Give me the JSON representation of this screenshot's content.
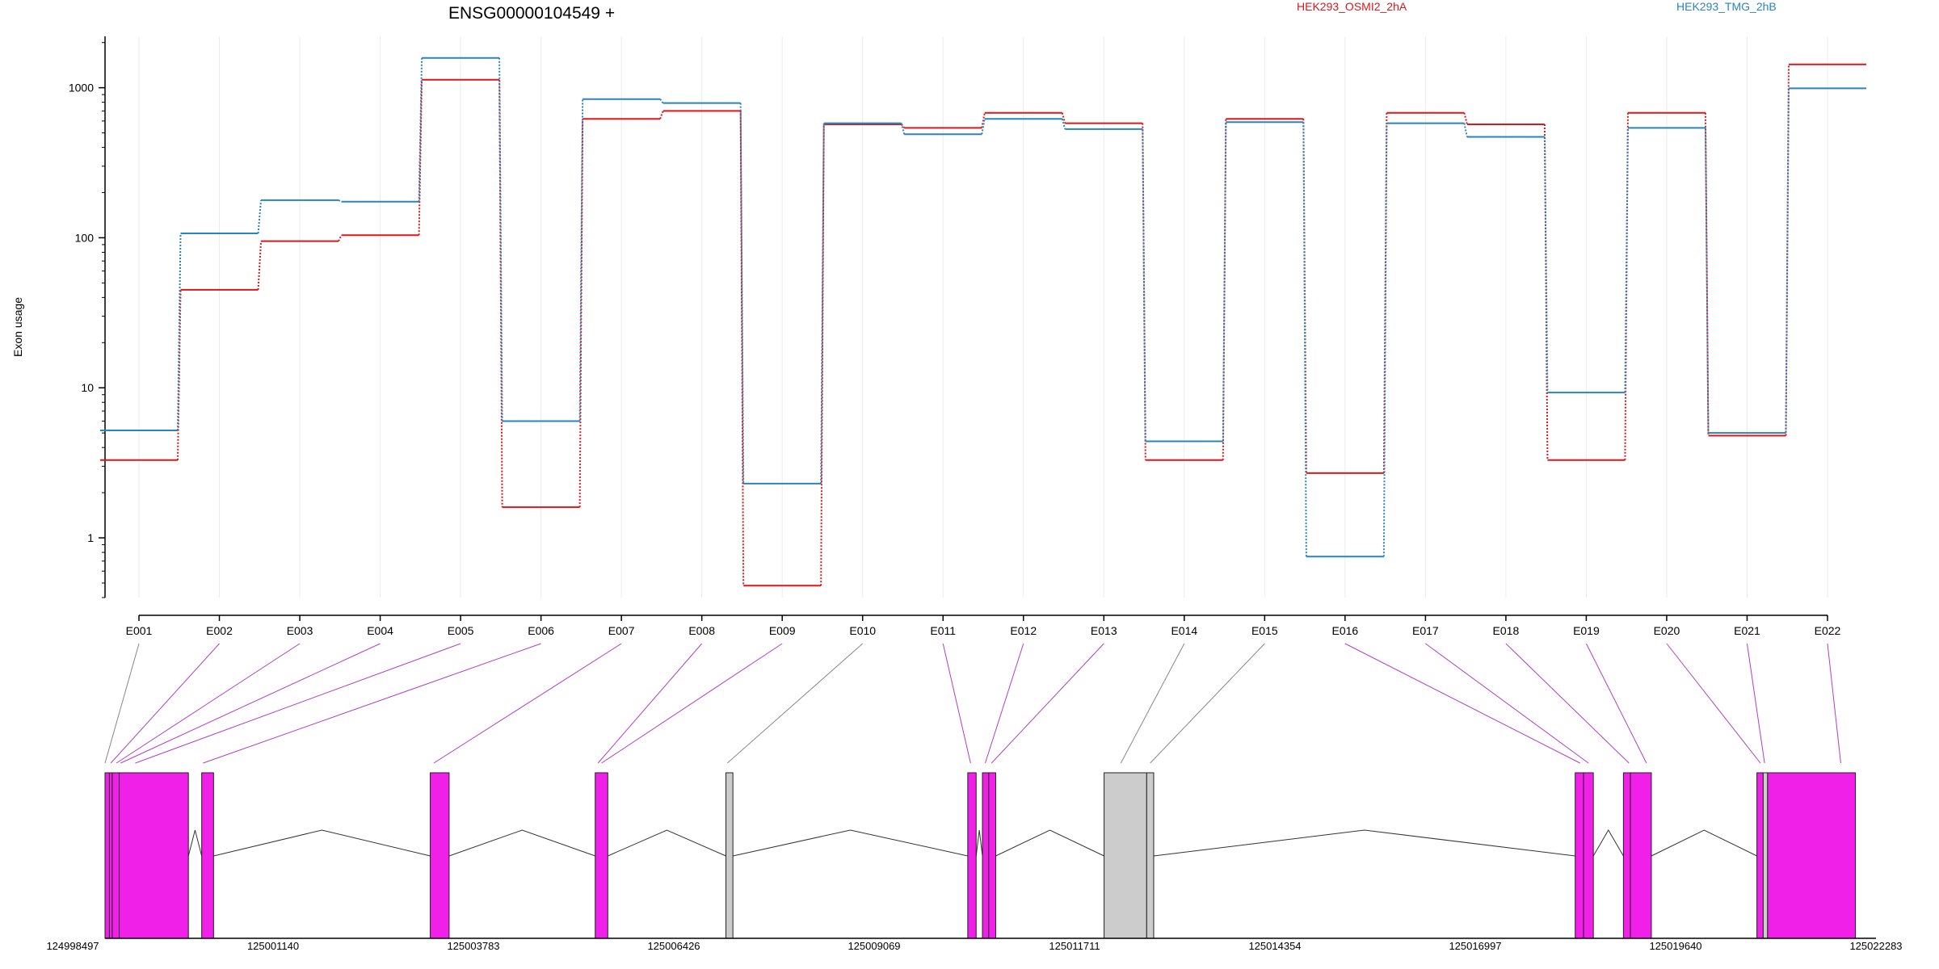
{
  "chart_data": {
    "type": "line",
    "title": "ENSG00000104549 +",
    "ylabel": "Exon usage",
    "yscale": "log",
    "ylim": [
      0.4,
      2200
    ],
    "y_ticks": [
      1,
      10,
      100,
      1000
    ],
    "y_tick_labels": [
      "1",
      "10",
      "100",
      "1000"
    ],
    "grid": "vertical",
    "legend_position": "top",
    "categories": [
      "E001",
      "E002",
      "E003",
      "E004",
      "E005",
      "E006",
      "E007",
      "E008",
      "E009",
      "E010",
      "E011",
      "E012",
      "E013",
      "E014",
      "E015",
      "E016",
      "E017",
      "E018",
      "E019",
      "E020",
      "E021",
      "E022"
    ],
    "series": [
      {
        "name": "HEK293_OSMI2_2hA",
        "color": "#d7191c",
        "values": [
          3.3,
          45,
          95,
          104,
          1130,
          1.6,
          620,
          700,
          0.48,
          570,
          540,
          680,
          580,
          3.3,
          620,
          2.7,
          680,
          570,
          3.3,
          680,
          4.8,
          1430
        ]
      },
      {
        "name": "HEK293_TMG_2hB",
        "color": "#2b83ba",
        "values": [
          5.2,
          107,
          178,
          174,
          1580,
          6.0,
          840,
          790,
          2.3,
          580,
          490,
          620,
          530,
          4.4,
          590,
          0.75,
          580,
          470,
          9.3,
          540,
          5.0,
          990
        ]
      }
    ],
    "gene_model": {
      "coordinate_labels": [
        "124998497",
        "125001140",
        "125003783",
        "125006426",
        "125009069",
        "125011711",
        "125014354",
        "125016997",
        "125019640",
        "125022283"
      ],
      "coordinate_range": [
        124998497,
        125022283
      ],
      "exons": [
        {
          "start": 124998497,
          "end": 124998560,
          "color": "#f020e8"
        },
        {
          "start": 124998560,
          "end": 124998600,
          "color": "#f020e8"
        },
        {
          "start": 124998600,
          "end": 124998700,
          "color": "#f020e8"
        },
        {
          "start": 124998700,
          "end": 124999690,
          "color": "#f020e8"
        },
        {
          "start": 124999880,
          "end": 125000050,
          "color": "#f020e8"
        },
        {
          "start": 125003150,
          "end": 125003420,
          "color": "#f020e8"
        },
        {
          "start": 125005510,
          "end": 125005690,
          "color": "#f020e8"
        },
        {
          "start": 125007380,
          "end": 125007480,
          "color": "#cccccc"
        },
        {
          "start": 125010840,
          "end": 125010960,
          "color": "#f020e8"
        },
        {
          "start": 125011050,
          "end": 125011140,
          "color": "#f020e8"
        },
        {
          "start": 125011140,
          "end": 125011240,
          "color": "#f020e8"
        },
        {
          "start": 125012790,
          "end": 125013400,
          "color": "#cccccc"
        },
        {
          "start": 125013400,
          "end": 125013500,
          "color": "#cccccc"
        },
        {
          "start": 125019530,
          "end": 125019650,
          "color": "#f020e8"
        },
        {
          "start": 125019650,
          "end": 125019790,
          "color": "#f020e8"
        },
        {
          "start": 125020220,
          "end": 125020320,
          "color": "#f020e8"
        },
        {
          "start": 125020320,
          "end": 125020620,
          "color": "#f020e8"
        },
        {
          "start": 125022130,
          "end": 125022220,
          "color": "#f020e8"
        },
        {
          "start": 125022220,
          "end": 125022283,
          "color": "#cccccc"
        },
        {
          "start": 125022283,
          "end": 125023540,
          "color": "#f020e8"
        }
      ],
      "exon_anchor_coords": [
        124998497,
        124998580,
        124998660,
        124998720,
        124998930,
        124999900,
        125003200,
        125005550,
        125005600,
        125007400,
        125010880,
        125011090,
        125011180,
        125013030,
        125013450,
        125019600,
        125019720,
        125020300,
        125020550,
        125022180,
        125022240,
        125023330
      ]
    }
  }
}
